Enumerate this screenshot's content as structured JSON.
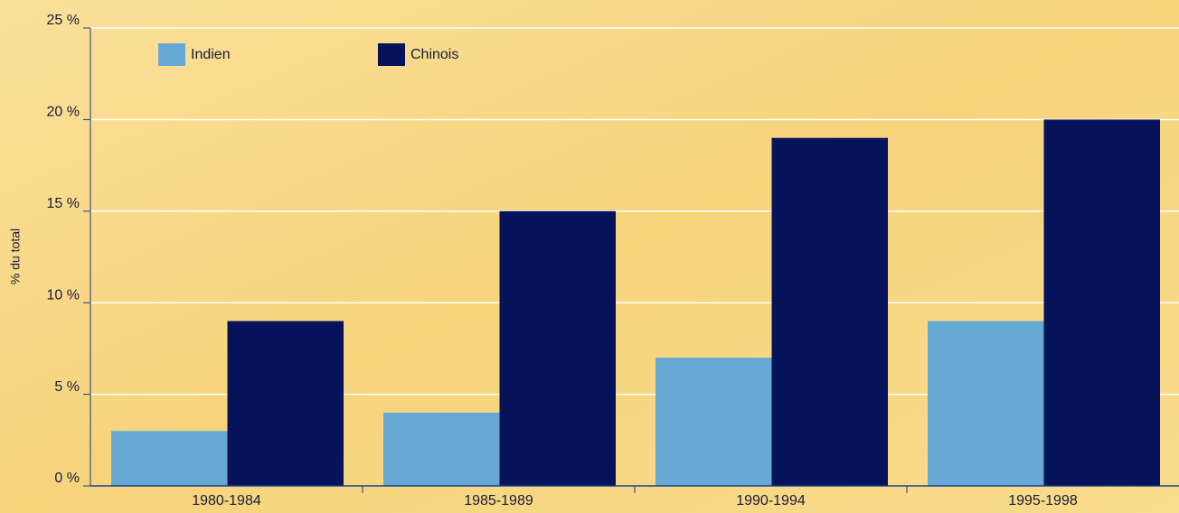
{
  "chart_data": {
    "type": "bar",
    "y_label": "% du total",
    "categories": [
      "1980-1984",
      "1985-1989",
      "1990-1994",
      "1995-1998"
    ],
    "series": [
      {
        "name": "Indien",
        "color": "#66a9d6",
        "values": [
          3,
          4,
          7,
          9
        ]
      },
      {
        "name": "Chinois",
        "color": "#06135a",
        "values": [
          9,
          15,
          19,
          20
        ]
      }
    ],
    "ylim": [
      0,
      25
    ],
    "yticks": [
      {
        "value": 0,
        "label": "0 %"
      },
      {
        "value": 5,
        "label": "5 %"
      },
      {
        "value": 10,
        "label": "10 %"
      },
      {
        "value": 15,
        "label": "15 %"
      },
      {
        "value": 20,
        "label": "20 %"
      },
      {
        "value": 25,
        "label": "25 %"
      }
    ],
    "grid": true
  }
}
